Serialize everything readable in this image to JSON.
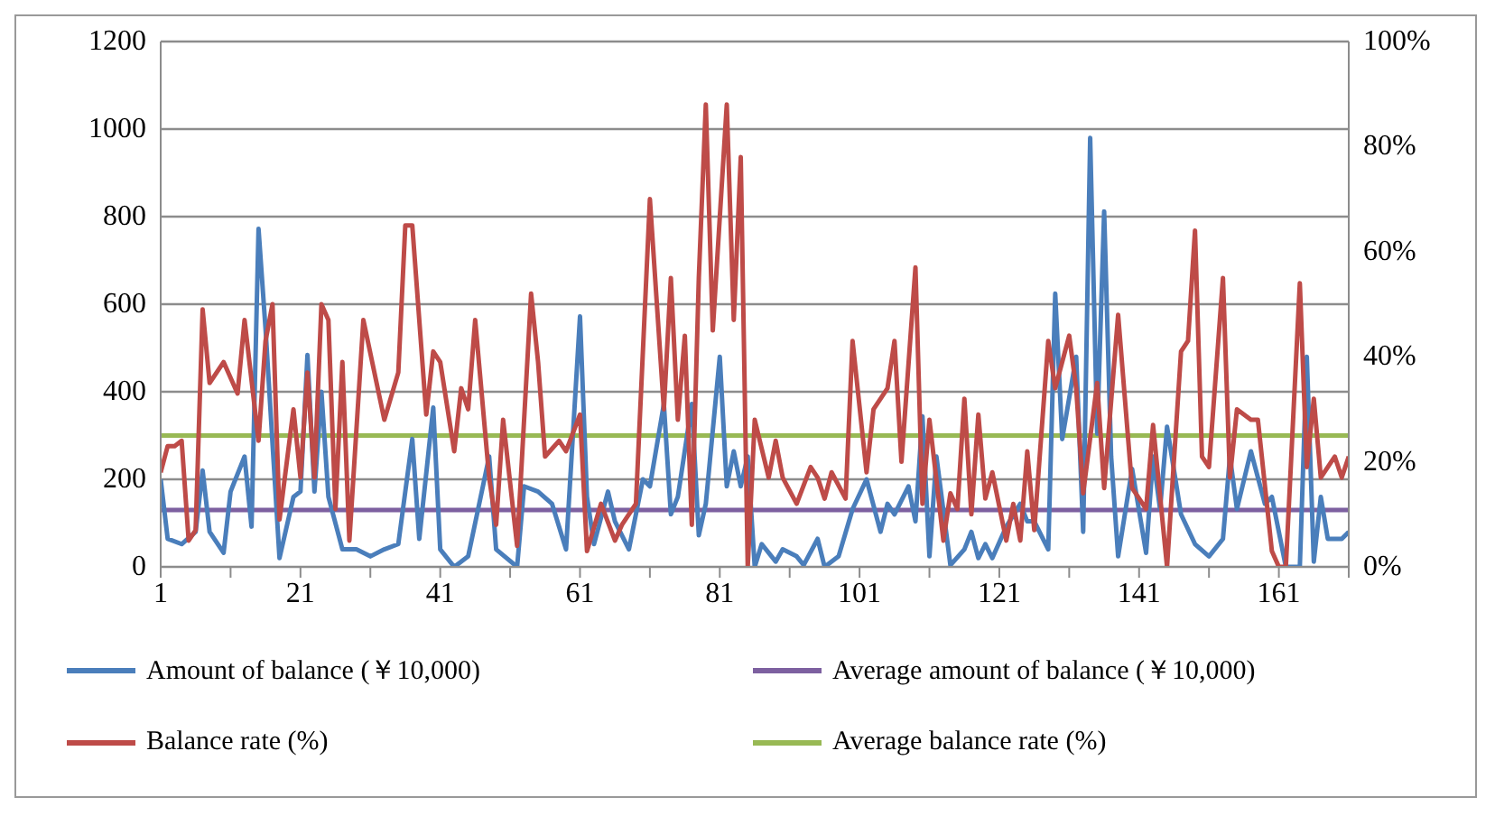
{
  "chart_data": {
    "type": "line",
    "series": [
      {
        "name": "Amount of balance (￥10,000)",
        "color": "#4a7ebb",
        "x": [
          1,
          2,
          4,
          6,
          7,
          8,
          10,
          11,
          13,
          14,
          15,
          16,
          18,
          20,
          21,
          22,
          23,
          24,
          25,
          27,
          29,
          31,
          33,
          35,
          37,
          38,
          40,
          41,
          43,
          45,
          48,
          49,
          52,
          53,
          55,
          57,
          59,
          61,
          62,
          63,
          65,
          66,
          68,
          70,
          71,
          73,
          74,
          75,
          77,
          78,
          79,
          81,
          82,
          83,
          84,
          85,
          86,
          87,
          89,
          90,
          92,
          93,
          95,
          96,
          98,
          100,
          102,
          104,
          105,
          106,
          108,
          109,
          110,
          111,
          112,
          114,
          116,
          117,
          118,
          119,
          120,
          122,
          124,
          125,
          126,
          128,
          129,
          130,
          132,
          133,
          134,
          135,
          136,
          137,
          138,
          140,
          142,
          143,
          144,
          145,
          147,
          149,
          151,
          153,
          154,
          155,
          157,
          159,
          160,
          162,
          164,
          165,
          166,
          167,
          168,
          170,
          171
        ],
        "values": [
          200,
          64,
          52,
          80,
          220,
          80,
          32,
          172,
          252,
          92,
          772,
          544,
          20,
          160,
          172,
          484,
          172,
          400,
          160,
          40,
          40,
          24,
          40,
          52,
          292,
          64,
          364,
          40,
          0,
          24,
          252,
          40,
          0,
          184,
          172,
          144,
          40,
          572,
          160,
          52,
          172,
          104,
          40,
          200,
          184,
          372,
          120,
          160,
          372,
          72,
          144,
          480,
          184,
          264,
          184,
          252,
          0,
          52,
          12,
          40,
          24,
          4,
          64,
          0,
          24,
          132,
          200,
          80,
          144,
          120,
          184,
          104,
          344,
          24,
          252,
          4,
          40,
          80,
          20,
          52,
          20,
          92,
          144,
          104,
          104,
          40,
          624,
          292,
          480,
          80,
          980,
          304,
          812,
          252,
          24,
          224,
          32,
          252,
          132,
          320,
          120,
          52,
          24,
          64,
          252,
          132,
          264,
          144,
          160,
          0,
          0,
          480,
          12,
          160,
          64,
          64,
          80
        ]
      },
      {
        "name": "Balance rate (%)",
        "color": "#be4b48",
        "axis": "y2",
        "x": [
          1,
          2,
          3,
          4,
          5,
          6,
          7,
          8,
          10,
          12,
          13,
          15,
          16,
          17,
          18,
          20,
          21,
          22,
          23,
          24,
          25,
          26,
          27,
          28,
          30,
          33,
          35,
          36,
          37,
          39,
          40,
          41,
          43,
          44,
          45,
          46,
          48,
          49,
          50,
          52,
          54,
          55,
          56,
          58,
          59,
          61,
          62,
          64,
          66,
          67,
          69,
          71,
          73,
          74,
          75,
          76,
          77,
          78,
          79,
          80,
          82,
          83,
          84,
          85,
          86,
          88,
          89,
          90,
          92,
          94,
          95,
          96,
          97,
          99,
          100,
          102,
          103,
          105,
          106,
          107,
          109,
          110,
          111,
          113,
          114,
          115,
          116,
          117,
          118,
          119,
          120,
          122,
          123,
          124,
          125,
          126,
          128,
          129,
          131,
          132,
          133,
          135,
          136,
          138,
          140,
          142,
          143,
          145,
          147,
          148,
          149,
          150,
          151,
          153,
          154,
          155,
          157,
          158,
          160,
          161,
          162,
          164,
          165,
          166,
          167,
          169,
          170,
          171
        ],
        "values": [
          18,
          23,
          23,
          24,
          5,
          7,
          49,
          35,
          39,
          33,
          47,
          24,
          43,
          50,
          9,
          30,
          17,
          37,
          17,
          50,
          47,
          11,
          39,
          5,
          47,
          28,
          37,
          65,
          65,
          29,
          41,
          39,
          22,
          34,
          30,
          47,
          17,
          8,
          28,
          4,
          52,
          39,
          21,
          24,
          22,
          29,
          3,
          12,
          5,
          8,
          12,
          70,
          30,
          55,
          28,
          44,
          8,
          55,
          88,
          45,
          88,
          47,
          78,
          0,
          28,
          17,
          24,
          17,
          12,
          19,
          17,
          13,
          18,
          13,
          43,
          18,
          30,
          34,
          43,
          20,
          57,
          12,
          28,
          5,
          14,
          11,
          32,
          10,
          29,
          13,
          18,
          5,
          12,
          5,
          22,
          7,
          43,
          34,
          44,
          34,
          14,
          35,
          15,
          48,
          15,
          11,
          27,
          0,
          41,
          43,
          64,
          21,
          19,
          55,
          17,
          30,
          28,
          28,
          3,
          0,
          0,
          54,
          19,
          32,
          17,
          21,
          17,
          21
        ]
      }
    ],
    "xlim": [
      1,
      171
    ],
    "xticks": [
      1,
      {
        "value": 11,
        "label": null
      },
      21,
      {
        "value": 31,
        "label": null
      },
      41,
      {
        "value": 51,
        "label": null
      },
      61,
      {
        "value": 71,
        "label": null
      },
      81,
      {
        "value": 91,
        "label": null
      },
      101,
      {
        "value": 111,
        "label": null
      },
      121,
      {
        "value": 131,
        "label": null
      },
      141,
      {
        "value": 151,
        "label": null
      },
      161,
      {
        "value": 171,
        "label": null
      }
    ],
    "ylim": [
      0,
      1200
    ],
    "yticks": [
      0,
      200,
      400,
      600,
      800,
      1000,
      1200
    ],
    "y2lim": [
      0,
      100
    ],
    "y2ticks": [
      {
        "value": 0,
        "label": "0%"
      },
      {
        "value": 20,
        "label": "20%"
      },
      {
        "value": 40,
        "label": "40%"
      },
      {
        "value": 60,
        "label": "60%"
      },
      {
        "value": 80,
        "label": "80%"
      },
      {
        "value": 100,
        "label": "100%"
      }
    ],
    "ref_lines": [
      {
        "axis": "y",
        "value": 130,
        "label": "Average amount of balance (￥10,000)",
        "color": "#7d60a0"
      },
      {
        "axis": "y2",
        "value": 25,
        "label": "Average balance rate (%)",
        "color": "#98b954"
      }
    ],
    "grid": "y",
    "legend": "bottom",
    "marker": "none",
    "line_style": "solid"
  }
}
